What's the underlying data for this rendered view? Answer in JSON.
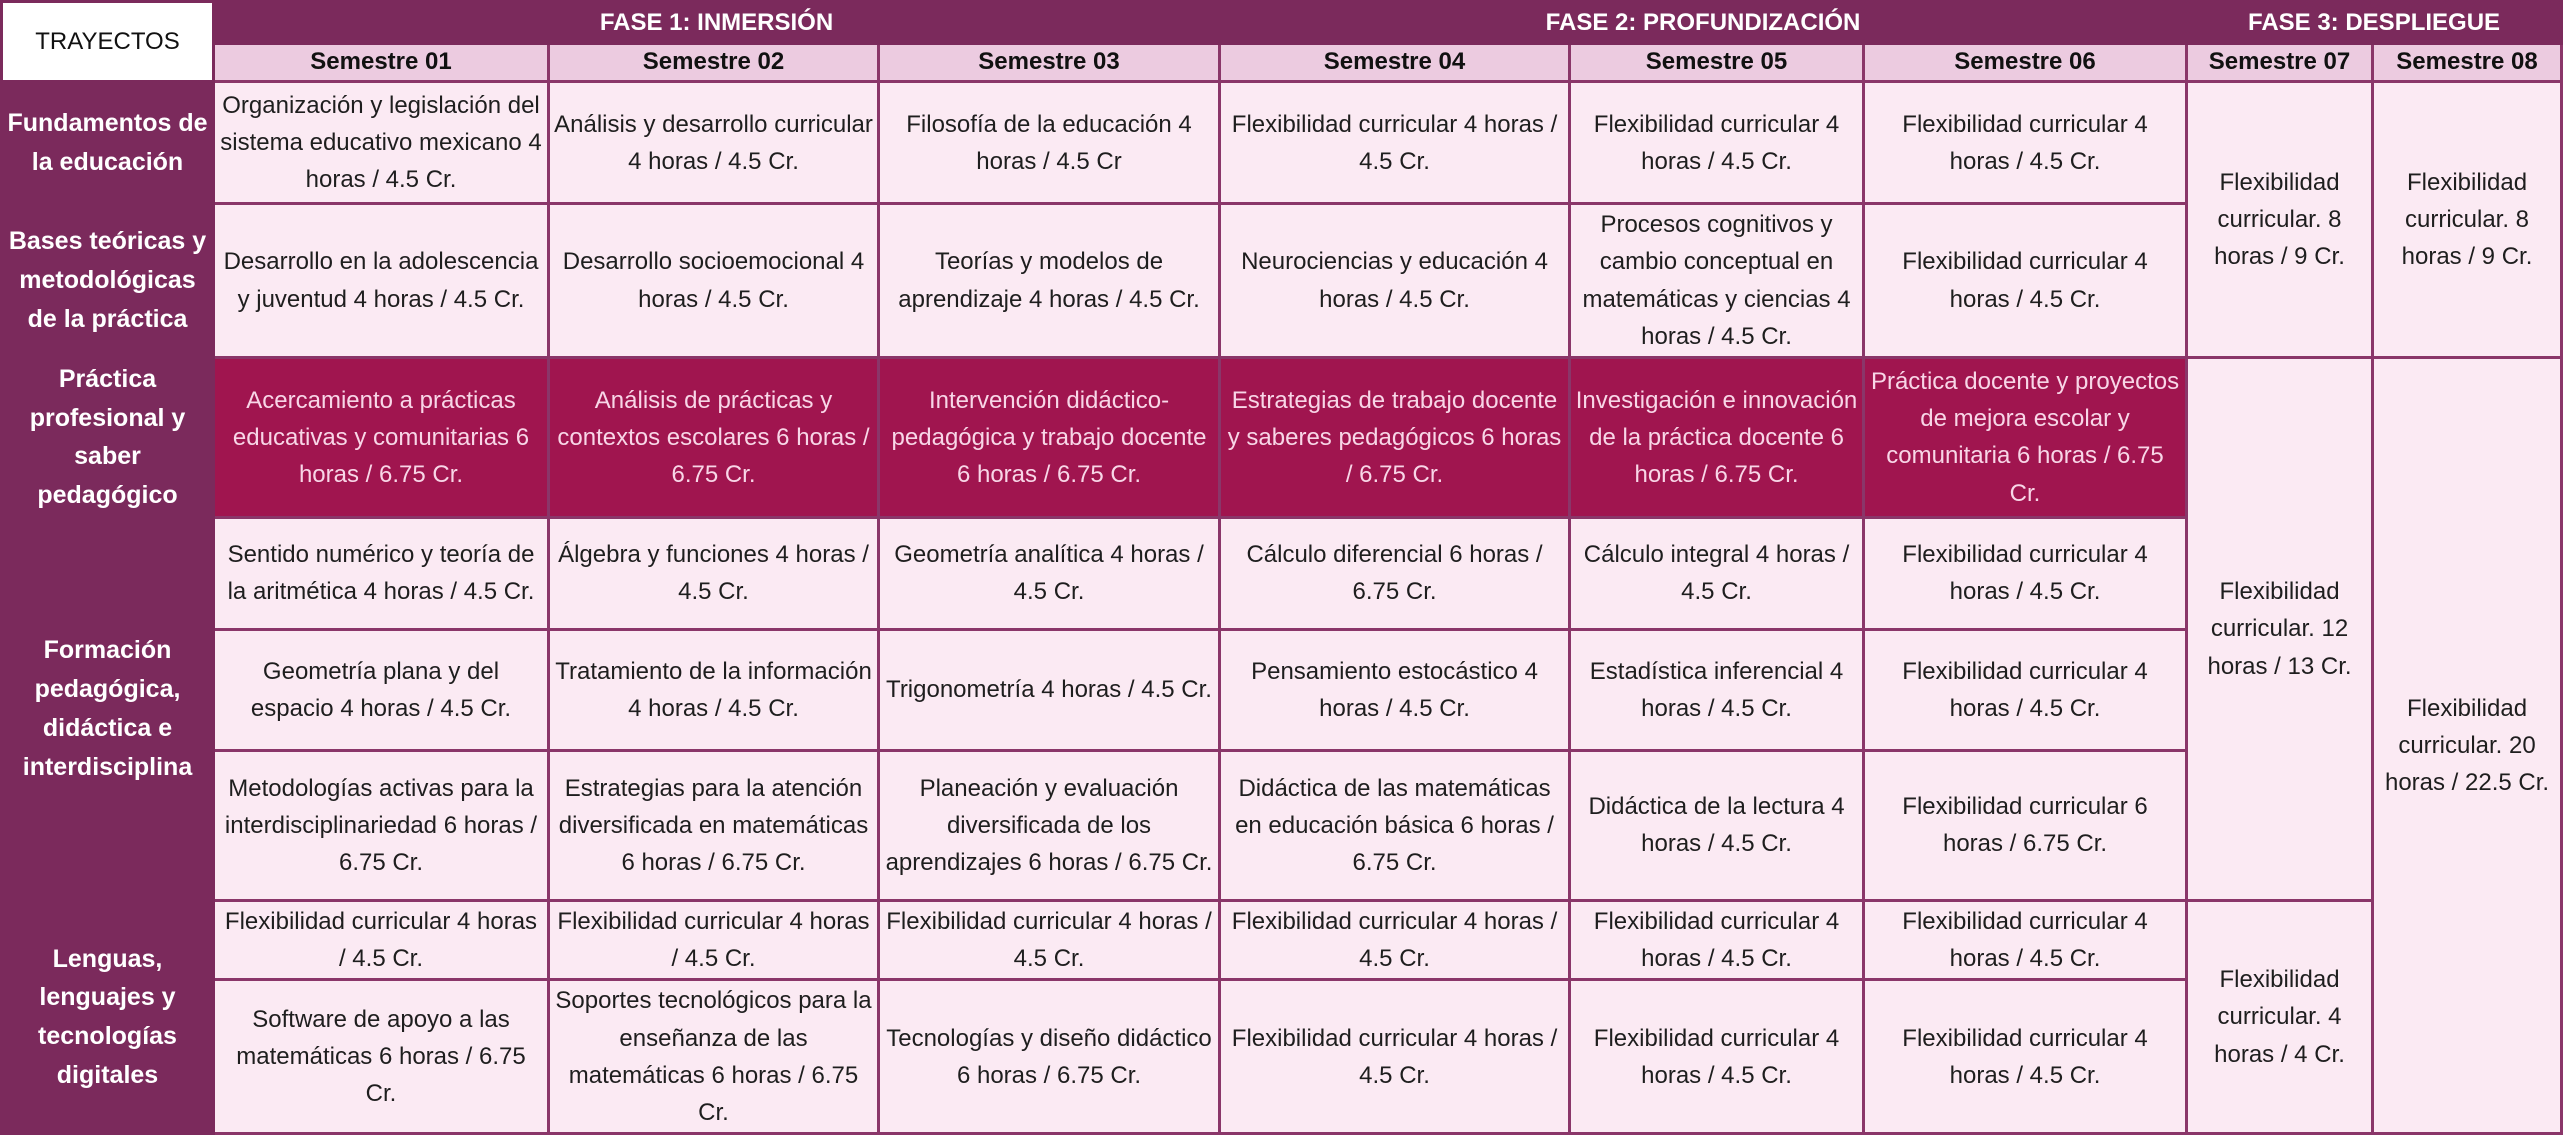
{
  "header": {
    "corner": "TRAYECTOS",
    "phases": [
      "FASE 1: INMERSIÓN",
      "FASE 2: PROFUNDIZACIÓN",
      "FASE 3: DESPLIEGUE"
    ],
    "semesters": [
      "Semestre 01",
      "Semestre 02",
      "Semestre 03",
      "Semestre 04",
      "Semestre 05",
      "Semestre 06",
      "Semestre 07",
      "Semestre 08"
    ]
  },
  "trayectos": [
    "Fundamentos de la educación",
    "Bases teóricas y metodológicas de la práctica",
    "Práctica profesional y saber pedagógico",
    "Formación pedagógica, didáctica e interdisciplina",
    "Lenguas, lenguajes y tecnologías digitales"
  ],
  "rows": [
    [
      "Organización y legislación del sistema educativo mexicano 4 horas / 4.5 Cr.",
      "Análisis y desarrollo curricular 4 horas / 4.5 Cr.",
      "Filosofía de la educación 4 horas / 4.5 Cr",
      "Flexibilidad curricular  4 horas / 4.5 Cr.",
      "Flexibilidad curricular  4 horas / 4.5 Cr.",
      "Flexibilidad curricular  4 horas / 4.5 Cr."
    ],
    [
      "Desarrollo en la adolescencia y juventud 4 horas / 4.5 Cr.",
      "Desarrollo socioemocional 4 horas / 4.5 Cr.",
      "Teorías y modelos de aprendizaje 4 horas / 4.5 Cr.",
      "Neurociencias y educación 4 horas / 4.5 Cr.",
      "Procesos cognitivos y cambio conceptual en matemáticas y ciencias 4 horas / 4.5 Cr.",
      "Flexibilidad curricular 4 horas / 4.5 Cr."
    ],
    [
      "Acercamiento a prácticas educativas y comunitarias 6 horas / 6.75 Cr.",
      "Análisis de prácticas y contextos escolares 6 horas / 6.75 Cr.",
      "Intervención didáctico-pedagógica y trabajo docente 6 horas / 6.75 Cr.",
      "Estrategias de trabajo docente y saberes pedagógicos 6 horas / 6.75 Cr.",
      "Investigación e innovación de la práctica docente 6 horas / 6.75 Cr.",
      "Práctica docente y proyectos de mejora escolar y comunitaria 6 horas / 6.75 Cr."
    ],
    [
      "Sentido numérico y teoría de la aritmética 4 horas / 4.5 Cr.",
      "Álgebra y funciones 4 horas / 4.5 Cr.",
      "Geometría analítica 4 horas / 4.5 Cr.",
      "Cálculo diferencial 6 horas / 6.75 Cr.",
      "Cálculo integral 4 horas / 4.5 Cr.",
      "Flexibilidad curricular 4 horas / 4.5 Cr."
    ],
    [
      "Geometría plana y del espacio 4 horas / 4.5 Cr.",
      "Tratamiento de la información 4 horas / 4.5 Cr.",
      "Trigonometría 4 horas / 4.5 Cr.",
      "Pensamiento estocástico 4 horas / 4.5 Cr.",
      "Estadística inferencial 4 horas / 4.5 Cr.",
      "Flexibilidad curricular 4 horas / 4.5 Cr."
    ],
    [
      "Metodologías activas para la interdisciplinariedad 6 horas / 6.75 Cr.",
      "Estrategias para la atención diversificada en matemáticas  6 horas / 6.75 Cr.",
      "Planeación y evaluación diversificada de los aprendizajes 6 horas / 6.75 Cr.",
      "Didáctica de las matemáticas en educación básica 6 horas / 6.75 Cr.",
      "Didáctica de la lectura 4 horas / 4.5 Cr.",
      "Flexibilidad curricular 6 horas / 6.75 Cr."
    ],
    [
      "Flexibilidad curricular  4 horas / 4.5 Cr.",
      "Flexibilidad curricular  4 horas / 4.5 Cr.",
      "Flexibilidad curricular  4 horas / 4.5 Cr.",
      "Flexibilidad curricular  4 horas / 4.5 Cr.",
      "Flexibilidad curricular 4 horas / 4.5 Cr.",
      "Flexibilidad curricular 4 horas / 4.5 Cr."
    ],
    [
      "Software de apoyo a las matemáticas 6 horas / 6.75 Cr.",
      "Soportes tecnológicos para la enseñanza de las matemáticas 6 horas / 6.75 Cr.",
      "Tecnologías y diseño didáctico 6 horas / 6.75 Cr.",
      "Flexibilidad curricular  4 horas / 4.5 Cr.",
      "Flexibilidad curricular 4 horas / 4.5 Cr.",
      "Flexibilidad curricular 4 horas / 4.5 Cr."
    ]
  ],
  "sem07": [
    "Flexibilidad curricular. 8 horas / 9 Cr.",
    "Flexibilidad curricular. 12 horas / 13 Cr.",
    "Flexibilidad curricular. 4 horas / 4 Cr."
  ],
  "sem08": [
    "Flexibilidad curricular. 8 horas / 9 Cr.",
    "Flexibilidad curricular. 20 horas / 22.5 Cr."
  ]
}
